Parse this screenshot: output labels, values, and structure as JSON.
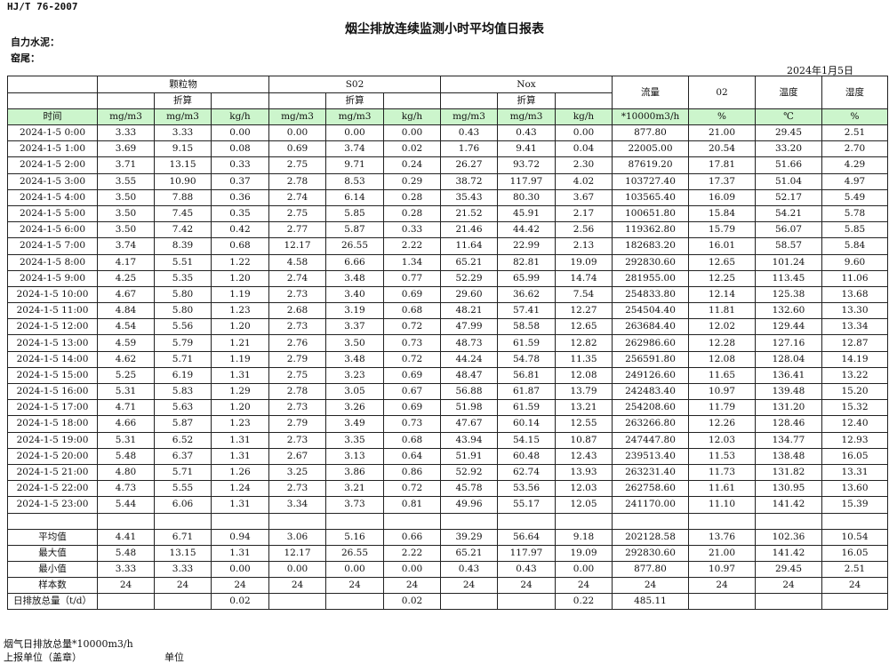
{
  "standard": "HJ/T  76-2007",
  "title": "烟尘排放连续监测小时平均值日报表",
  "company_label": "自力水泥：",
  "kiln_label": "窑尾：",
  "report_date": "2024年1月5日",
  "header": {
    "particulate": "颗粒物",
    "so2": "S02",
    "nox": "Nox",
    "flow": "流量",
    "o2": "02",
    "temperature": "温度",
    "humidity": "湿度",
    "converted": "折算"
  },
  "units": [
    "时间",
    "mg/m3",
    "mg/m3",
    "kg/h",
    "mg/m3",
    "mg/m3",
    "kg/h",
    "mg/m3",
    "mg/m3",
    "kg/h",
    "*10000m3/h",
    "%",
    "℃",
    "%"
  ],
  "rows": [
    [
      "2024-1-5 0:00",
      "3.33",
      "3.33",
      "0.00",
      "0.00",
      "0.00",
      "0.00",
      "0.43",
      "0.43",
      "0.00",
      "877.80",
      "21.00",
      "29.45",
      "2.51"
    ],
    [
      "2024-1-5 1:00",
      "3.69",
      "9.15",
      "0.08",
      "0.69",
      "3.74",
      "0.02",
      "1.76",
      "9.41",
      "0.04",
      "22005.00",
      "20.54",
      "33.20",
      "2.70"
    ],
    [
      "2024-1-5 2:00",
      "3.71",
      "13.15",
      "0.33",
      "2.75",
      "9.71",
      "0.24",
      "26.27",
      "93.72",
      "2.30",
      "87619.20",
      "17.81",
      "51.66",
      "4.29"
    ],
    [
      "2024-1-5 3:00",
      "3.55",
      "10.90",
      "0.37",
      "2.78",
      "8.53",
      "0.29",
      "38.72",
      "117.97",
      "4.02",
      "103727.40",
      "17.37",
      "51.04",
      "4.97"
    ],
    [
      "2024-1-5 4:00",
      "3.50",
      "7.88",
      "0.36",
      "2.74",
      "6.14",
      "0.28",
      "35.43",
      "80.30",
      "3.67",
      "103565.40",
      "16.09",
      "52.17",
      "5.49"
    ],
    [
      "2024-1-5 5:00",
      "3.50",
      "7.45",
      "0.35",
      "2.75",
      "5.85",
      "0.28",
      "21.52",
      "45.91",
      "2.17",
      "100651.80",
      "15.84",
      "54.21",
      "5.78"
    ],
    [
      "2024-1-5 6:00",
      "3.50",
      "7.42",
      "0.42",
      "2.77",
      "5.87",
      "0.33",
      "21.46",
      "44.42",
      "2.56",
      "119362.80",
      "15.79",
      "56.07",
      "5.85"
    ],
    [
      "2024-1-5 7:00",
      "3.74",
      "8.39",
      "0.68",
      "12.17",
      "26.55",
      "2.22",
      "11.64",
      "22.99",
      "2.13",
      "182683.20",
      "16.01",
      "58.57",
      "5.84"
    ],
    [
      "2024-1-5 8:00",
      "4.17",
      "5.51",
      "1.22",
      "4.58",
      "6.66",
      "1.34",
      "65.21",
      "82.81",
      "19.09",
      "292830.60",
      "12.65",
      "101.24",
      "9.60"
    ],
    [
      "2024-1-5 9:00",
      "4.25",
      "5.35",
      "1.20",
      "2.74",
      "3.48",
      "0.77",
      "52.29",
      "65.99",
      "14.74",
      "281955.00",
      "12.25",
      "113.45",
      "11.06"
    ],
    [
      "2024-1-5 10:00",
      "4.67",
      "5.80",
      "1.19",
      "2.73",
      "3.40",
      "0.69",
      "29.60",
      "36.62",
      "7.54",
      "254833.80",
      "12.14",
      "125.38",
      "13.68"
    ],
    [
      "2024-1-5 11:00",
      "4.84",
      "5.80",
      "1.23",
      "2.68",
      "3.19",
      "0.68",
      "48.21",
      "57.41",
      "12.27",
      "254504.40",
      "11.81",
      "132.60",
      "13.30"
    ],
    [
      "2024-1-5 12:00",
      "4.54",
      "5.56",
      "1.20",
      "2.73",
      "3.37",
      "0.72",
      "47.99",
      "58.58",
      "12.65",
      "263684.40",
      "12.02",
      "129.44",
      "13.34"
    ],
    [
      "2024-1-5 13:00",
      "4.59",
      "5.79",
      "1.21",
      "2.76",
      "3.50",
      "0.73",
      "48.73",
      "61.59",
      "12.82",
      "262986.60",
      "12.28",
      "127.16",
      "12.87"
    ],
    [
      "2024-1-5 14:00",
      "4.62",
      "5.71",
      "1.19",
      "2.79",
      "3.48",
      "0.72",
      "44.24",
      "54.78",
      "11.35",
      "256591.80",
      "12.08",
      "128.04",
      "14.19"
    ],
    [
      "2024-1-5 15:00",
      "5.25",
      "6.19",
      "1.31",
      "2.75",
      "3.23",
      "0.69",
      "48.47",
      "56.81",
      "12.08",
      "249126.60",
      "11.65",
      "136.41",
      "13.22"
    ],
    [
      "2024-1-5 16:00",
      "5.31",
      "5.83",
      "1.29",
      "2.78",
      "3.05",
      "0.67",
      "56.88",
      "61.87",
      "13.79",
      "242483.40",
      "10.97",
      "139.48",
      "15.20"
    ],
    [
      "2024-1-5 17:00",
      "4.71",
      "5.63",
      "1.20",
      "2.73",
      "3.26",
      "0.69",
      "51.98",
      "61.59",
      "13.21",
      "254208.60",
      "11.79",
      "131.20",
      "15.32"
    ],
    [
      "2024-1-5 18:00",
      "4.66",
      "5.87",
      "1.23",
      "2.79",
      "3.49",
      "0.73",
      "47.67",
      "60.14",
      "12.55",
      "263266.80",
      "12.26",
      "128.46",
      "12.40"
    ],
    [
      "2024-1-5 19:00",
      "5.31",
      "6.52",
      "1.31",
      "2.73",
      "3.35",
      "0.68",
      "43.94",
      "54.15",
      "10.87",
      "247447.80",
      "12.03",
      "134.77",
      "12.93"
    ],
    [
      "2024-1-5 20:00",
      "5.48",
      "6.37",
      "1.31",
      "2.67",
      "3.13",
      "0.64",
      "51.91",
      "60.48",
      "12.43",
      "239513.40",
      "11.53",
      "138.48",
      "16.05"
    ],
    [
      "2024-1-5 21:00",
      "4.80",
      "5.71",
      "1.26",
      "3.25",
      "3.86",
      "0.86",
      "52.92",
      "62.74",
      "13.93",
      "263231.40",
      "11.73",
      "131.82",
      "13.31"
    ],
    [
      "2024-1-5 22:00",
      "4.73",
      "5.55",
      "1.24",
      "2.73",
      "3.21",
      "0.72",
      "45.78",
      "53.56",
      "12.03",
      "262758.60",
      "11.61",
      "130.95",
      "13.60"
    ],
    [
      "2024-1-5 23:00",
      "5.44",
      "6.06",
      "1.31",
      "3.34",
      "3.73",
      "0.81",
      "49.96",
      "55.17",
      "12.05",
      "241170.00",
      "11.10",
      "141.42",
      "15.39"
    ]
  ],
  "summary": [
    [
      "平均值",
      "4.41",
      "6.71",
      "0.94",
      "3.06",
      "5.16",
      "0.66",
      "39.29",
      "56.64",
      "9.18",
      "202128.58",
      "13.76",
      "102.36",
      "10.54"
    ],
    [
      "最大值",
      "5.48",
      "13.15",
      "1.31",
      "12.17",
      "26.55",
      "2.22",
      "65.21",
      "117.97",
      "19.09",
      "292830.60",
      "21.00",
      "141.42",
      "16.05"
    ],
    [
      "最小值",
      "3.33",
      "3.33",
      "0.00",
      "0.00",
      "0.00",
      "0.00",
      "0.43",
      "0.43",
      "0.00",
      "877.80",
      "10.97",
      "29.45",
      "2.51"
    ],
    [
      "样本数",
      "24",
      "24",
      "24",
      "24",
      "24",
      "24",
      "24",
      "24",
      "24",
      "24",
      "24",
      "24",
      "24"
    ],
    [
      "日排放总量（t/d）",
      "",
      "",
      "0.02",
      "",
      "",
      "0.02",
      "",
      "",
      "0.22",
      "485.11",
      "",
      "",
      ""
    ]
  ],
  "footer": {
    "flue_gas_total": "烟气日排放总量*10000m3/h",
    "reporting_unit": "上报单位（盖章）",
    "unit": "单位"
  },
  "colors": {
    "unit_row_bg": "#ccf5cc",
    "border": "#222222"
  }
}
